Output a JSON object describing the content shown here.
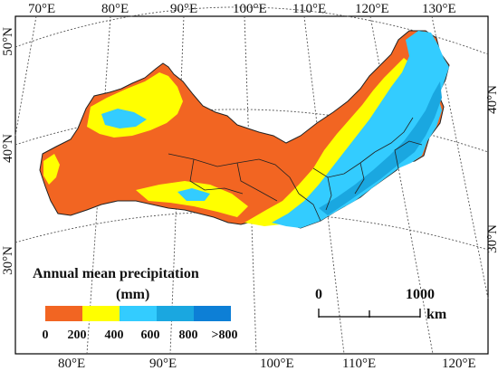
{
  "map": {
    "top_longitudes": [
      "70°E",
      "80°E",
      "90°E",
      "100°E",
      "110°E",
      "120°E",
      "130°E"
    ],
    "bottom_longitudes": [
      "80°E",
      "90°E",
      "100°E",
      "110°E",
      "120°E"
    ],
    "left_latitudes": [
      "50°N",
      "40°N",
      "30°N"
    ],
    "right_latitudes": [
      "40°N",
      "30°N"
    ]
  },
  "legend": {
    "title_line1": "Annual mean precipitation",
    "title_line2": "(mm)",
    "colors": [
      "#f26522",
      "#ffff00",
      "#33ccff",
      "#1aa7e0",
      "#0d7fd6",
      "#0050e0"
    ],
    "labels": [
      "0",
      "200",
      "400",
      "600",
      "800",
      ">800"
    ]
  },
  "scale_bar": {
    "start_label": "0",
    "end_label": "1000",
    "unit": "km"
  },
  "colors": {
    "orange": "#f26522",
    "yellow": "#ffff00",
    "light_blue": "#33ccff",
    "mid_blue": "#1aa7e0",
    "dark_blue": "#0d7fd6"
  }
}
